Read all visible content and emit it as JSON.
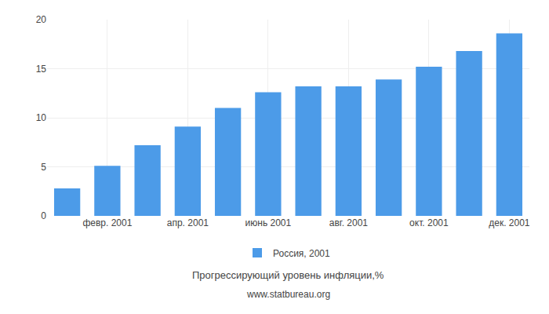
{
  "chart_data": {
    "type": "bar",
    "title": "Прогрессирующий уровень инфляции,%",
    "subtitle": "www.statbureau.org",
    "categories": [
      null,
      "февр. 2001",
      null,
      "апр. 2001",
      null,
      "июнь 2001",
      null,
      "авг. 2001",
      null,
      "окт. 2001",
      null,
      "дек. 2001"
    ],
    "series": [
      {
        "name": "Россия, 2001",
        "color": "#4C9BE8",
        "values": [
          2.8,
          5.1,
          7.2,
          9.1,
          11.0,
          12.6,
          13.2,
          13.2,
          13.9,
          15.2,
          16.8,
          18.6
        ]
      }
    ],
    "ylim": [
      0,
      20
    ],
    "yticks": [
      0,
      5,
      10,
      15,
      20
    ],
    "grid": true,
    "legend": "bottom"
  }
}
